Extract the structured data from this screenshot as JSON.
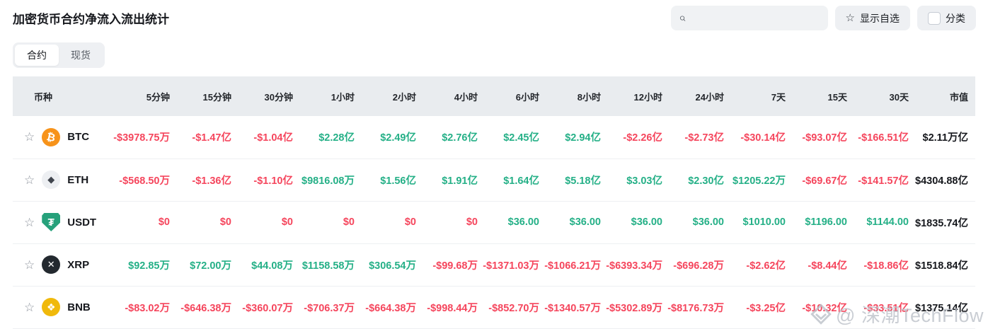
{
  "page": {
    "title": "加密货币合约净流入流出统计"
  },
  "toolbar": {
    "search_placeholder": "",
    "show_favorites_label": "显示自选",
    "category_label": "分类"
  },
  "icons": {
    "search_icon": "magnifier",
    "star_glyph": "☆",
    "watermark_logo": "diamond"
  },
  "colors": {
    "positive": "#25b087",
    "negative": "#f5465d",
    "header_bg": "#e9ecef"
  },
  "tabs": [
    {
      "label": "合约",
      "active": true
    },
    {
      "label": "现货",
      "active": false
    }
  ],
  "table": {
    "columns": [
      "币种",
      "5分钟",
      "15分钟",
      "30分钟",
      "1小时",
      "2小时",
      "4小时",
      "6小时",
      "8小时",
      "12小时",
      "24小时",
      "7天",
      "15天",
      "30天",
      "市值"
    ],
    "rows": [
      {
        "symbol": "BTC",
        "icon": {
          "name": "btc-logo-icon",
          "glyph": "₿",
          "bg": "#f7931a",
          "fg": "#ffffff",
          "shape": "circle"
        },
        "values": [
          {
            "text": "-$3978.75万",
            "sign": "neg"
          },
          {
            "text": "-$1.47亿",
            "sign": "neg"
          },
          {
            "text": "-$1.04亿",
            "sign": "neg"
          },
          {
            "text": "$2.28亿",
            "sign": "pos"
          },
          {
            "text": "$2.49亿",
            "sign": "pos"
          },
          {
            "text": "$2.76亿",
            "sign": "pos"
          },
          {
            "text": "$2.45亿",
            "sign": "pos"
          },
          {
            "text": "$2.94亿",
            "sign": "pos"
          },
          {
            "text": "-$2.26亿",
            "sign": "neg"
          },
          {
            "text": "-$2.73亿",
            "sign": "neg"
          },
          {
            "text": "-$30.14亿",
            "sign": "neg"
          },
          {
            "text": "-$93.07亿",
            "sign": "neg"
          },
          {
            "text": "-$166.51亿",
            "sign": "neg"
          }
        ],
        "market_cap": "$2.11万亿"
      },
      {
        "symbol": "ETH",
        "icon": {
          "name": "eth-logo-icon",
          "glyph": "◆",
          "bg": "#edeff2",
          "fg": "#40454d",
          "shape": "circle"
        },
        "values": [
          {
            "text": "-$568.50万",
            "sign": "neg"
          },
          {
            "text": "-$1.36亿",
            "sign": "neg"
          },
          {
            "text": "-$1.10亿",
            "sign": "neg"
          },
          {
            "text": "$9816.08万",
            "sign": "pos"
          },
          {
            "text": "$1.56亿",
            "sign": "pos"
          },
          {
            "text": "$1.91亿",
            "sign": "pos"
          },
          {
            "text": "$1.64亿",
            "sign": "pos"
          },
          {
            "text": "$5.18亿",
            "sign": "pos"
          },
          {
            "text": "$3.03亿",
            "sign": "pos"
          },
          {
            "text": "$2.30亿",
            "sign": "pos"
          },
          {
            "text": "$1205.22万",
            "sign": "pos"
          },
          {
            "text": "-$69.67亿",
            "sign": "neg"
          },
          {
            "text": "-$141.57亿",
            "sign": "neg"
          }
        ],
        "market_cap": "$4304.88亿"
      },
      {
        "symbol": "USDT",
        "icon": {
          "name": "usdt-logo-icon",
          "glyph": "₮",
          "bg": "#26a17b",
          "fg": "#ffffff",
          "shape": "shield"
        },
        "values": [
          {
            "text": "$0",
            "sign": "neg"
          },
          {
            "text": "$0",
            "sign": "neg"
          },
          {
            "text": "$0",
            "sign": "neg"
          },
          {
            "text": "$0",
            "sign": "neg"
          },
          {
            "text": "$0",
            "sign": "neg"
          },
          {
            "text": "$0",
            "sign": "neg"
          },
          {
            "text": "$36.00",
            "sign": "pos"
          },
          {
            "text": "$36.00",
            "sign": "pos"
          },
          {
            "text": "$36.00",
            "sign": "pos"
          },
          {
            "text": "$36.00",
            "sign": "pos"
          },
          {
            "text": "$1010.00",
            "sign": "pos"
          },
          {
            "text": "$1196.00",
            "sign": "pos"
          },
          {
            "text": "$1144.00",
            "sign": "pos"
          }
        ],
        "market_cap": "$1835.74亿"
      },
      {
        "symbol": "XRP",
        "icon": {
          "name": "xrp-logo-icon",
          "glyph": "✕",
          "bg": "#23292f",
          "fg": "#ffffff",
          "shape": "circle"
        },
        "values": [
          {
            "text": "$92.85万",
            "sign": "pos"
          },
          {
            "text": "$72.00万",
            "sign": "pos"
          },
          {
            "text": "$44.08万",
            "sign": "pos"
          },
          {
            "text": "$1158.58万",
            "sign": "pos"
          },
          {
            "text": "$306.54万",
            "sign": "pos"
          },
          {
            "text": "-$99.68万",
            "sign": "neg"
          },
          {
            "text": "-$1371.03万",
            "sign": "neg"
          },
          {
            "text": "-$1066.21万",
            "sign": "neg"
          },
          {
            "text": "-$6393.34万",
            "sign": "neg"
          },
          {
            "text": "-$696.28万",
            "sign": "neg"
          },
          {
            "text": "-$2.62亿",
            "sign": "neg"
          },
          {
            "text": "-$8.44亿",
            "sign": "neg"
          },
          {
            "text": "-$18.86亿",
            "sign": "neg"
          }
        ],
        "market_cap": "$1518.84亿"
      },
      {
        "symbol": "BNB",
        "icon": {
          "name": "bnb-logo-icon",
          "glyph": "❖",
          "bg": "#f0b90b",
          "fg": "#ffffff",
          "shape": "circle"
        },
        "values": [
          {
            "text": "-$83.02万",
            "sign": "neg"
          },
          {
            "text": "-$646.38万",
            "sign": "neg"
          },
          {
            "text": "-$360.07万",
            "sign": "neg"
          },
          {
            "text": "-$706.37万",
            "sign": "neg"
          },
          {
            "text": "-$664.38万",
            "sign": "neg"
          },
          {
            "text": "-$998.44万",
            "sign": "neg"
          },
          {
            "text": "-$852.70万",
            "sign": "neg"
          },
          {
            "text": "-$1340.57万",
            "sign": "neg"
          },
          {
            "text": "-$5302.89万",
            "sign": "neg"
          },
          {
            "text": "-$8176.73万",
            "sign": "neg"
          },
          {
            "text": "-$3.25亿",
            "sign": "neg"
          },
          {
            "text": "-$10.32亿",
            "sign": "neg"
          },
          {
            "text": "-$33.51亿",
            "sign": "neg"
          }
        ],
        "market_cap": "$1375.14亿"
      }
    ]
  },
  "watermark": {
    "text": "@ 深潮TechFlow"
  }
}
